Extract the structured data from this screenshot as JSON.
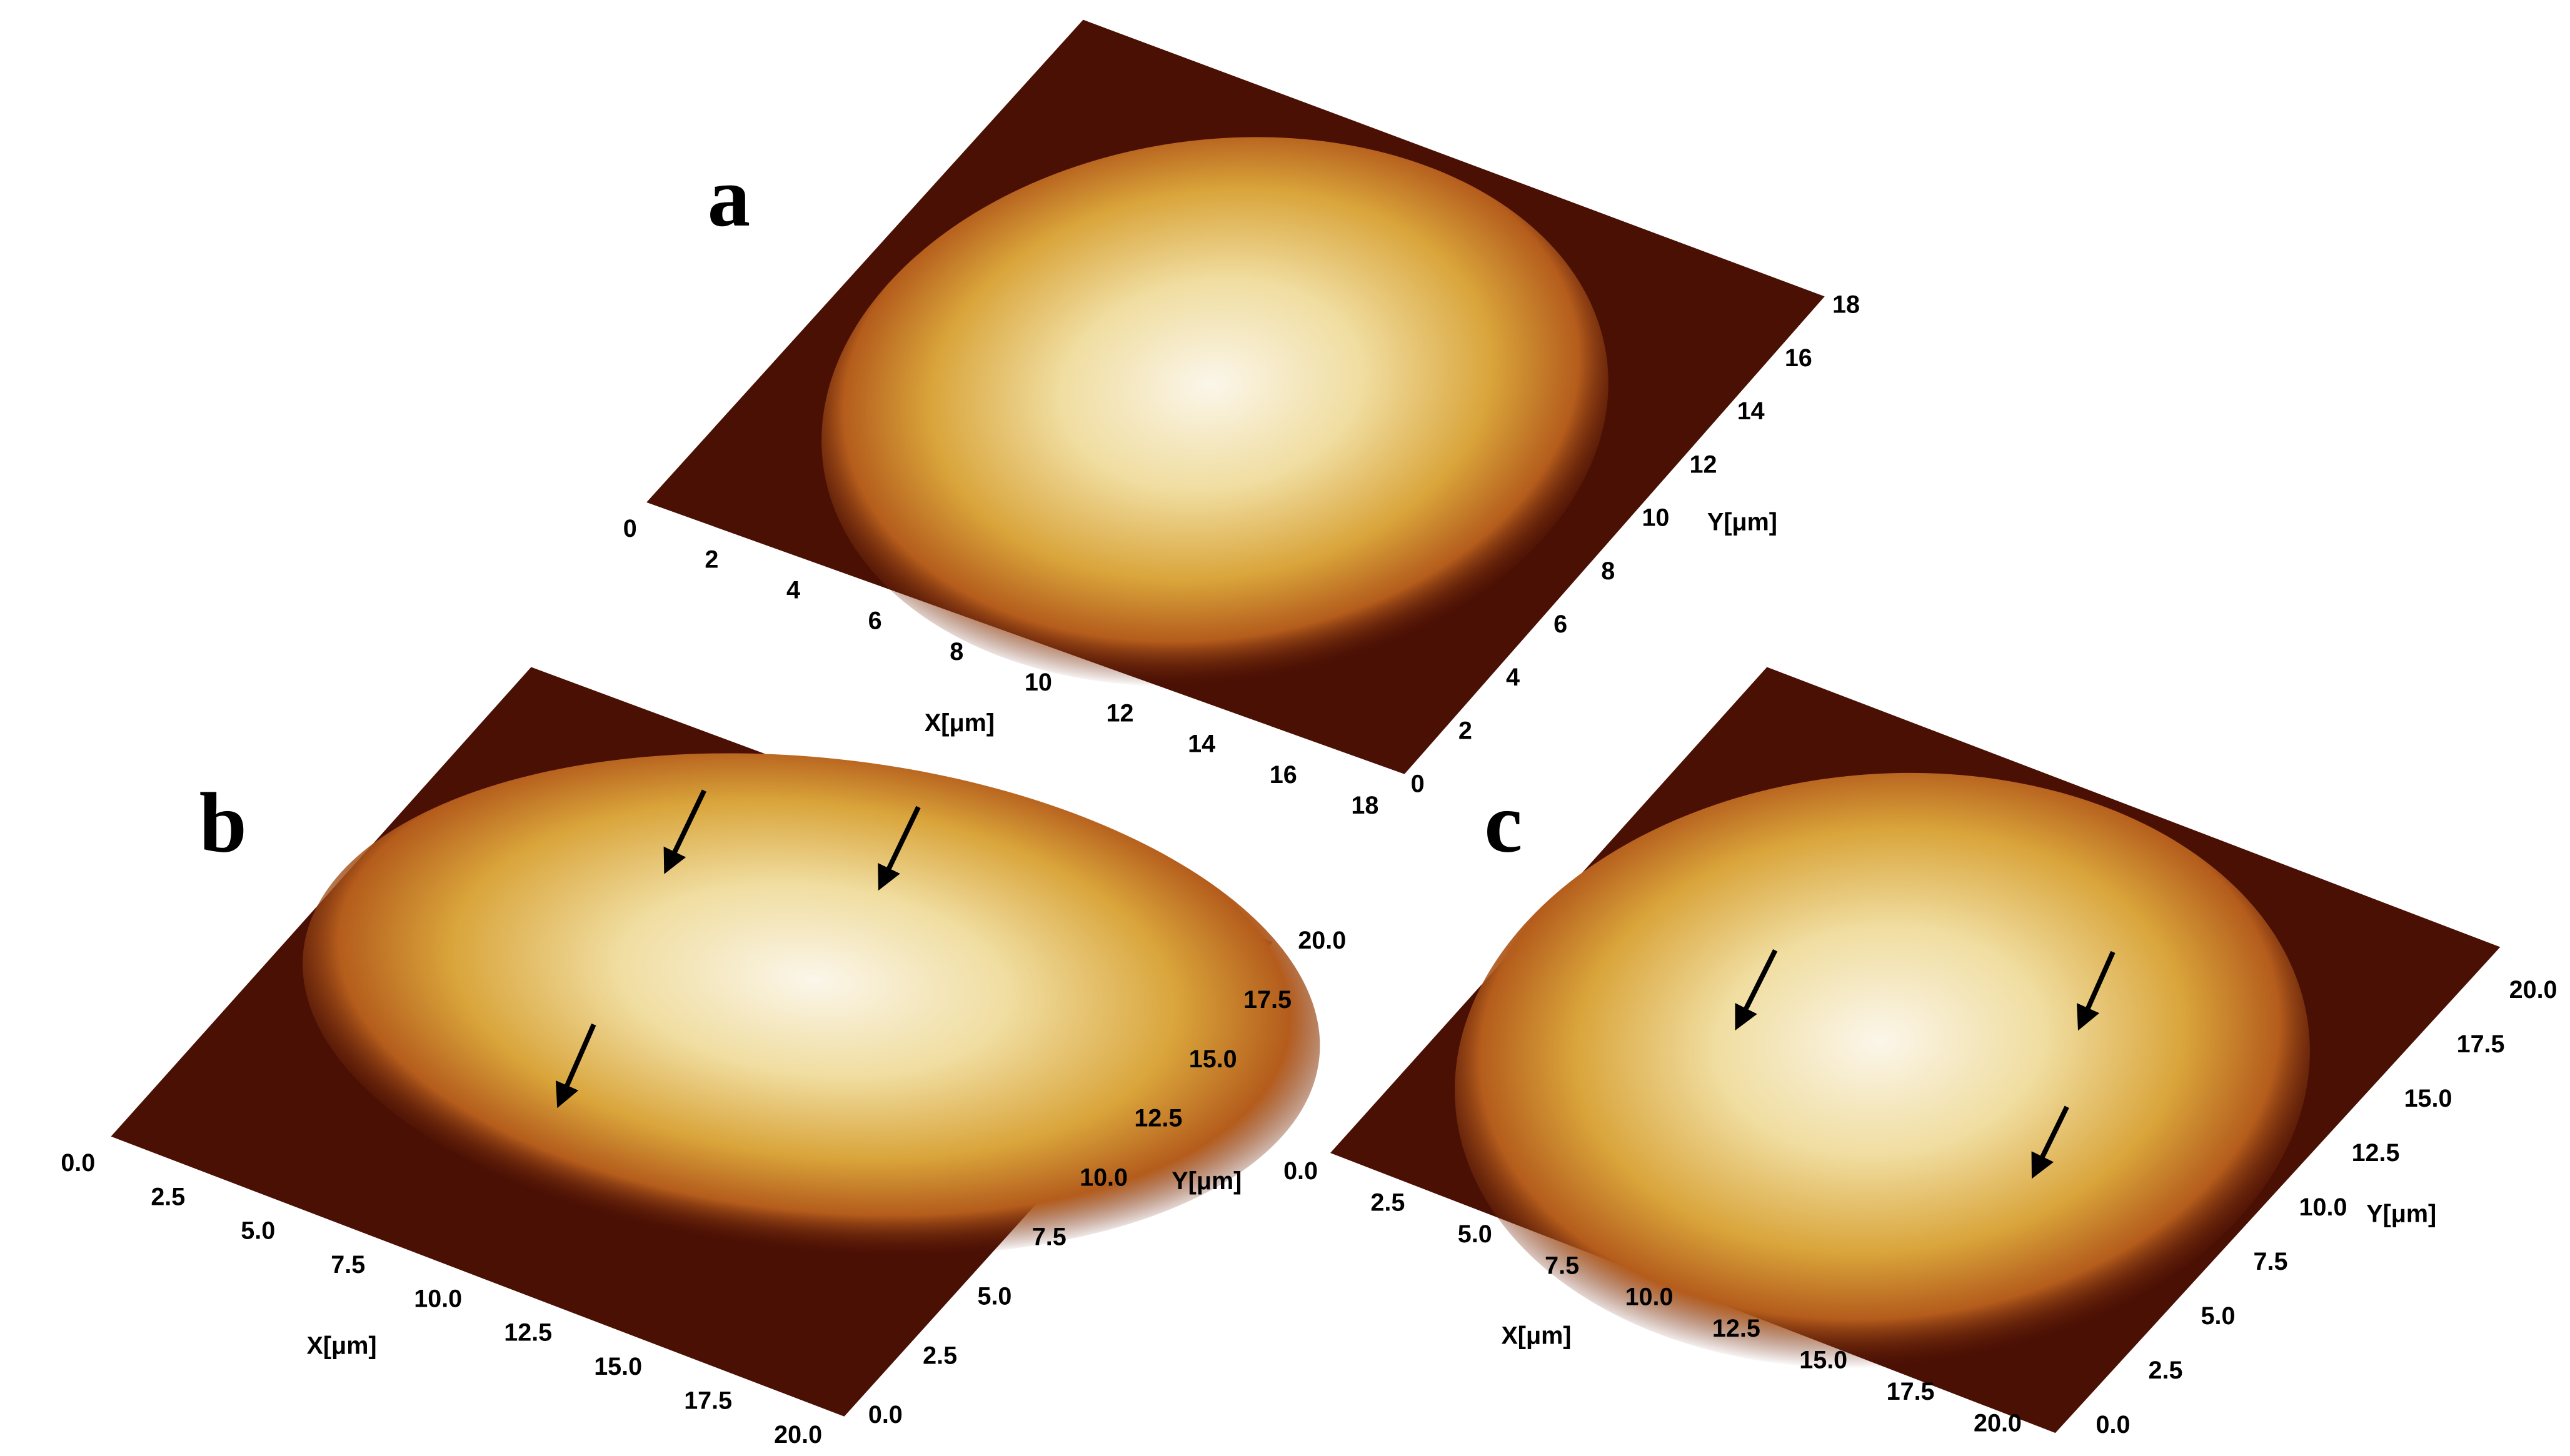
{
  "panels": [
    {
      "label": "a",
      "x_axis_label": "X[μm]",
      "y_axis_label": "Y[μm]",
      "x_ticks": [
        "0",
        "2",
        "4",
        "6",
        "8",
        "10",
        "12",
        "14",
        "16",
        "18"
      ],
      "y_ticks": [
        "0",
        "2",
        "4",
        "6",
        "8",
        "10",
        "12",
        "14",
        "16",
        "18"
      ]
    },
    {
      "label": "b",
      "x_axis_label": "X[μm]",
      "y_axis_label": "Y[μm]",
      "x_ticks": [
        "0.0",
        "2.5",
        "5.0",
        "7.5",
        "10.0",
        "12.5",
        "15.0",
        "17.5",
        "20.0"
      ],
      "y_ticks": [
        "0.0",
        "2.5",
        "5.0",
        "7.5",
        "10.0",
        "12.5",
        "15.0",
        "17.5",
        "20.0"
      ]
    },
    {
      "label": "c",
      "x_axis_label": "X[μm]",
      "y_axis_label": "Y[μm]",
      "x_ticks": [
        "0.0",
        "2.5",
        "5.0",
        "7.5",
        "10.0",
        "12.5",
        "15.0",
        "17.5",
        "20.0"
      ],
      "y_ticks": [
        "0.0",
        "2.5",
        "5.0",
        "7.5",
        "10.0",
        "12.5",
        "15.0",
        "17.5",
        "20.0"
      ]
    }
  ]
}
